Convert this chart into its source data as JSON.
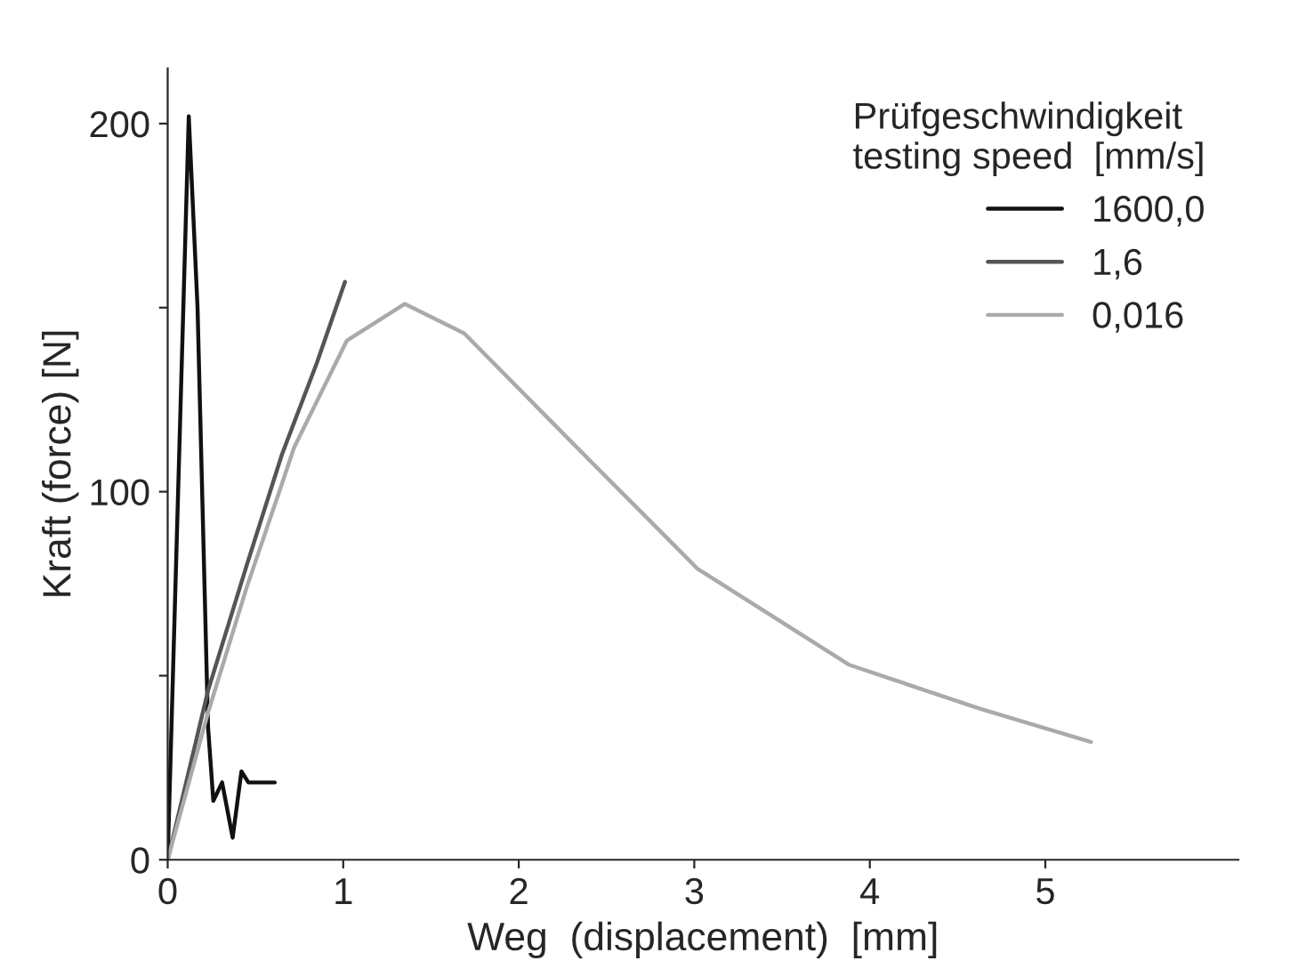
{
  "chart_data": {
    "type": "line",
    "xlabel": "Weg  (displacement)  [mm]",
    "ylabel": "Kraft (force) [N]",
    "legend_title": "Prüfgeschwindigkeit\ntesting speed  [mm/s]",
    "series": [
      {
        "name": "1600,0",
        "color": "#111111",
        "x": [
          0,
          0.12,
          0.17,
          0.23,
          0.26,
          0.31,
          0.37,
          0.42,
          0.46,
          0.61
        ],
        "values": [
          0,
          202,
          150,
          36,
          16,
          21,
          6,
          24,
          21,
          21
        ]
      },
      {
        "name": "1,6",
        "color": "#555555",
        "x": [
          0,
          0.23,
          0.45,
          0.65,
          0.85,
          1.01
        ],
        "values": [
          0,
          46,
          80,
          110,
          135,
          157
        ]
      },
      {
        "name": "0,016",
        "color": "#aaaaaa",
        "x": [
          0,
          0.23,
          0.45,
          0.65,
          0.72,
          1.02,
          1.35,
          1.69,
          2.29,
          3.02,
          3.88,
          4.63,
          5.26
        ],
        "values": [
          0,
          40,
          74,
          102,
          112,
          141,
          151,
          143,
          114,
          79,
          53,
          41,
          32
        ]
      }
    ],
    "xlim": [
      0,
      6.1
    ],
    "ylim": [
      0,
      215
    ],
    "xticks": [
      0,
      1,
      2,
      3,
      4,
      5
    ],
    "yticks": [
      0,
      {
        "value": 50,
        "label": null
      },
      100,
      {
        "value": 150,
        "label": null
      },
      200
    ],
    "legend": "top right",
    "grid": false
  }
}
